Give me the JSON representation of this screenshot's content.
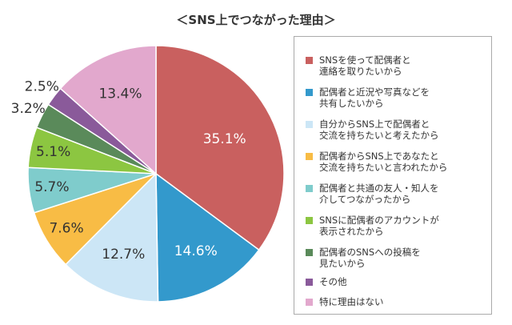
{
  "chart_data": {
    "type": "pie",
    "title": "＜SNS上でつながった理由＞",
    "legend_position": "right",
    "slices": [
      {
        "label": "SNSを使って配偶者と\n連絡を取りたいから",
        "value": 35.1,
        "value_label": "35.1%",
        "color": "#c9605f"
      },
      {
        "label": "配偶者と近況や写真などを\n共有したいから",
        "value": 14.6,
        "value_label": "14.6%",
        "color": "#3399cc"
      },
      {
        "label": "自分からSNS上で配偶者と\n交流を持ちたいと考えたから",
        "value": 12.7,
        "value_label": "12.7%",
        "color": "#cce6f6"
      },
      {
        "label": "配偶者からSNS上であなたと\n交流を持ちたいと言われたから",
        "value": 7.6,
        "value_label": "7.6%",
        "color": "#f8bc45"
      },
      {
        "label": "配偶者と共通の友人・知人を\n介してつながったから",
        "value": 5.7,
        "value_label": "5.7%",
        "color": "#7fcccc"
      },
      {
        "label": "SNSに配偶者のアカウントが\n表示されたから",
        "value": 5.1,
        "value_label": "5.1%",
        "color": "#8cc641"
      },
      {
        "label": "配偶者のSNSへの投稿を\n見たいから",
        "value": 3.2,
        "value_label": "3.2%",
        "color": "#5a8a5a"
      },
      {
        "label": "その他",
        "value": 2.5,
        "value_label": "2.5%",
        "color": "#8a5a9a"
      },
      {
        "label": "特に理由はない",
        "value": 13.4,
        "value_label": "13.4%",
        "color": "#e2a8cd"
      }
    ]
  }
}
